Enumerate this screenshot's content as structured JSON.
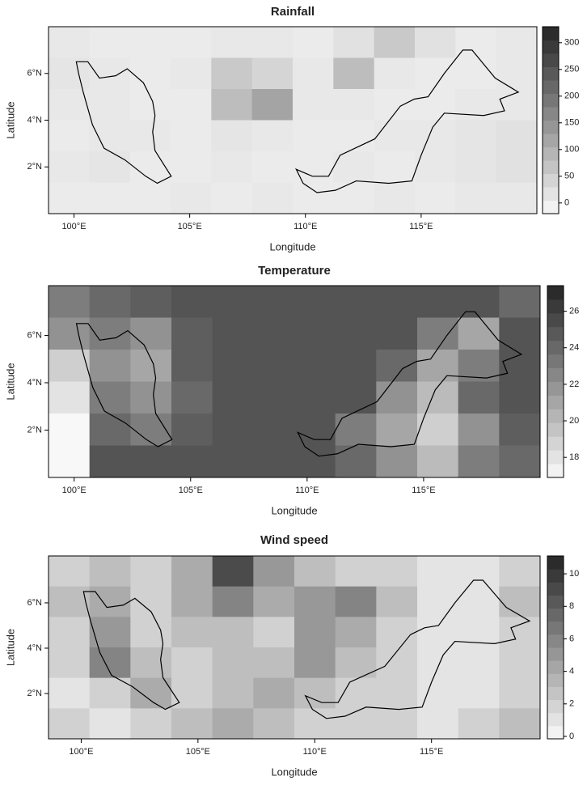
{
  "chart_data": [
    {
      "type": "raster",
      "title": "Rainfall",
      "xlabel": "Longitude",
      "ylabel": "Latitude",
      "xlim": [
        98.9,
        120
      ],
      "ylim": [
        0,
        8
      ],
      "xticks": [
        {
          "value": 100,
          "label": "100°E"
        },
        {
          "value": 105,
          "label": "105°E"
        },
        {
          "value": 110,
          "label": "110°E"
        },
        {
          "value": 115,
          "label": "115°E"
        }
      ],
      "yticks": [
        {
          "value": 2,
          "label": "2°N"
        },
        {
          "value": 4,
          "label": "4°N"
        },
        {
          "value": 6,
          "label": "6°N"
        }
      ],
      "clim": [
        -20,
        330
      ],
      "cticks": [
        0,
        50,
        100,
        150,
        200,
        250,
        300
      ],
      "values": [
        [
          10,
          5,
          5,
          5,
          10,
          10,
          5,
          20,
          60,
          20,
          5,
          10
        ],
        [
          15,
          10,
          5,
          10,
          60,
          40,
          10,
          80,
          10,
          5,
          5,
          10
        ],
        [
          10,
          10,
          5,
          5,
          80,
          120,
          10,
          10,
          5,
          5,
          10,
          10
        ],
        [
          5,
          10,
          10,
          5,
          15,
          10,
          5,
          5,
          10,
          10,
          15,
          20
        ],
        [
          10,
          15,
          5,
          5,
          10,
          5,
          5,
          10,
          5,
          10,
          15,
          20
        ],
        [
          5,
          5,
          5,
          10,
          5,
          10,
          5,
          5,
          10,
          5,
          10,
          10
        ]
      ]
    },
    {
      "type": "raster",
      "title": "Temperature",
      "xlabel": "Longitude",
      "ylabel": "Latitude",
      "xlim": [
        98.9,
        120
      ],
      "ylim": [
        0,
        8.1
      ],
      "xticks": [
        {
          "value": 100,
          "label": "100°E"
        },
        {
          "value": 105,
          "label": "105°E"
        },
        {
          "value": 110,
          "label": "110°E"
        },
        {
          "value": 115,
          "label": "115°E"
        }
      ],
      "yticks": [
        {
          "value": 2,
          "label": "2°N"
        },
        {
          "value": 4,
          "label": "4°N"
        },
        {
          "value": 6,
          "label": "6°N"
        }
      ],
      "clim": [
        16.9,
        27.4
      ],
      "cticks": [
        18,
        20,
        22,
        24,
        26
      ],
      "values": [
        [
          23,
          24,
          24.5,
          25,
          25,
          25,
          25,
          25,
          25,
          25,
          25,
          24
        ],
        [
          22,
          23,
          22,
          24.5,
          25,
          25,
          25,
          25,
          25,
          23,
          21,
          25
        ],
        [
          19,
          22,
          21,
          24.5,
          25,
          25,
          25,
          25,
          24,
          21,
          23,
          25
        ],
        [
          18,
          23,
          22,
          24,
          25,
          25,
          25,
          25,
          22,
          20,
          24,
          25
        ],
        [
          17,
          24,
          23,
          24.5,
          25,
          25,
          25,
          23,
          21,
          19,
          22,
          24.5
        ],
        [
          17,
          25,
          25,
          25,
          25,
          25,
          25,
          24,
          22,
          20,
          23,
          24
        ]
      ]
    },
    {
      "type": "raster",
      "title": "Wind speed",
      "xlabel": "Longitude",
      "ylabel": "Latitude",
      "xlim": [
        98.6,
        119.65
      ],
      "ylim": [
        0,
        8.07
      ],
      "xticks": [
        {
          "value": 100,
          "label": "100°E"
        },
        {
          "value": 105,
          "label": "105°E"
        },
        {
          "value": 110,
          "label": "110°E"
        },
        {
          "value": 115,
          "label": "115°E"
        }
      ],
      "yticks": [
        {
          "value": 2,
          "label": "2°N"
        },
        {
          "value": 4,
          "label": "4°N"
        },
        {
          "value": 6,
          "label": "6°N"
        }
      ],
      "clim": [
        -0.15,
        11.1
      ],
      "cticks": [
        0,
        2,
        4,
        6,
        8,
        10
      ],
      "values": [
        [
          2,
          3,
          2,
          4,
          9,
          5,
          3,
          2,
          2,
          1,
          1,
          2
        ],
        [
          3,
          4,
          2,
          4,
          6,
          4,
          5,
          6,
          3,
          1,
          1,
          3
        ],
        [
          2,
          5,
          2,
          3,
          3,
          2,
          5,
          4,
          2,
          1,
          1,
          2
        ],
        [
          2,
          6,
          3,
          2,
          3,
          3,
          5,
          3,
          2,
          1,
          1,
          2
        ],
        [
          1,
          2,
          4,
          2,
          3,
          4,
          3,
          2,
          2,
          1,
          1,
          2
        ],
        [
          2,
          1,
          2,
          3,
          4,
          3,
          2,
          2,
          2,
          1,
          2,
          3
        ]
      ]
    }
  ]
}
